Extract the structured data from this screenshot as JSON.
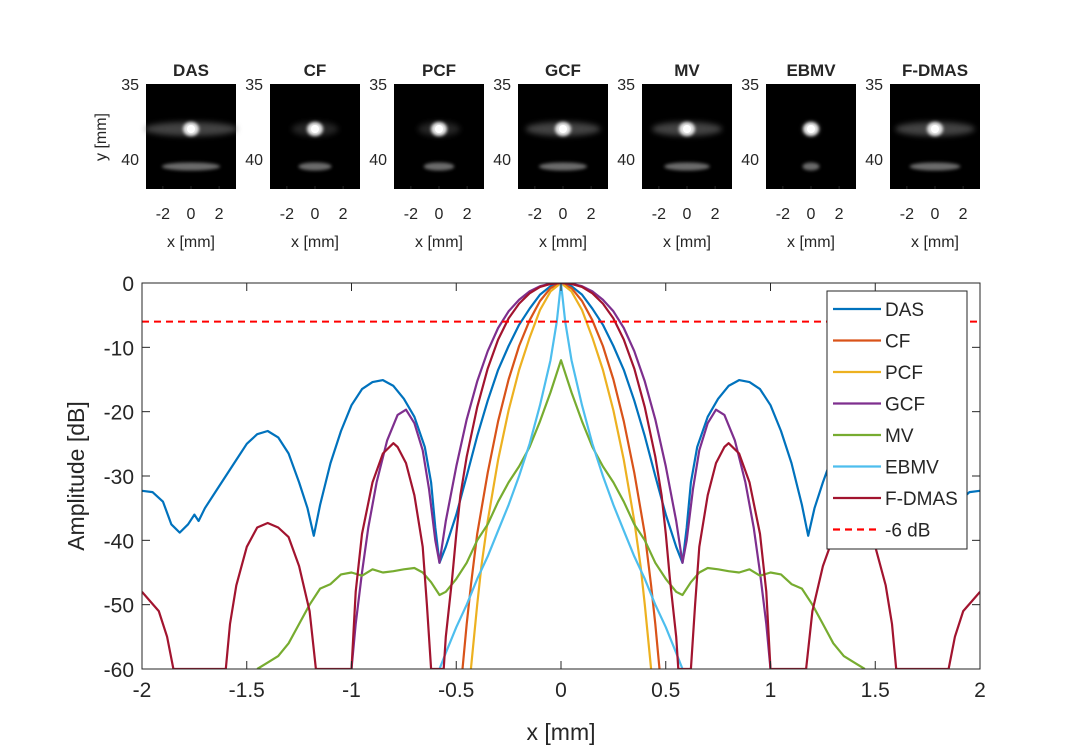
{
  "chart_data": [
    {
      "type": "image-grid",
      "panels": [
        {
          "title": "DAS"
        },
        {
          "title": "CF"
        },
        {
          "title": "PCF"
        },
        {
          "title": "GCF"
        },
        {
          "title": "MV"
        },
        {
          "title": "EBMV"
        },
        {
          "title": "F-DMAS"
        }
      ],
      "xlabel": "x [mm]",
      "ylabel": "y [mm]",
      "xlim": [
        -3.2,
        3.2
      ],
      "ylim": [
        35,
        42
      ],
      "y_reversed": true,
      "xticks": [
        -2,
        0,
        2
      ],
      "yticks": [
        35,
        40
      ],
      "colormap": "gray",
      "point_target_mm": {
        "x": 0,
        "y": 38
      },
      "secondary_spot_mm": {
        "x": 0,
        "y": 40.5
      }
    },
    {
      "type": "line",
      "title": "",
      "xlabel": "x [mm]",
      "ylabel": "Amplitude [dB]",
      "xlim": [
        -2,
        2
      ],
      "ylim": [
        -60,
        0
      ],
      "xticks": [
        -2,
        -1.5,
        -1,
        -0.5,
        0,
        0.5,
        1,
        1.5,
        2
      ],
      "yticks": [
        0,
        -10,
        -20,
        -30,
        -40,
        -50,
        -60
      ],
      "grid": false,
      "legend": "top-right",
      "series": [
        {
          "name": "DAS",
          "color": "#0072BD",
          "points": [
            [
              0,
              0
            ],
            [
              0.05,
              -0.5
            ],
            [
              0.1,
              -1.8
            ],
            [
              0.15,
              -4
            ],
            [
              0.2,
              -6.5
            ],
            [
              0.25,
              -9.8
            ],
            [
              0.3,
              -13.5
            ],
            [
              0.35,
              -18.3
            ],
            [
              0.4,
              -23.8
            ],
            [
              0.45,
              -30
            ],
            [
              0.5,
              -36
            ],
            [
              0.55,
              -41
            ],
            [
              0.58,
              -43.5
            ],
            [
              0.6,
              -38
            ],
            [
              0.62,
              -31
            ],
            [
              0.65,
              -25.5
            ],
            [
              0.7,
              -20.8
            ],
            [
              0.75,
              -18
            ],
            [
              0.8,
              -16
            ],
            [
              0.85,
              -15.1
            ],
            [
              0.9,
              -15.4
            ],
            [
              0.95,
              -16.5
            ],
            [
              1.0,
              -19
            ],
            [
              1.05,
              -23
            ],
            [
              1.1,
              -28
            ],
            [
              1.15,
              -34.5
            ],
            [
              1.18,
              -39.3
            ],
            [
              1.21,
              -35
            ],
            [
              1.25,
              -31
            ],
            [
              1.3,
              -26.5
            ],
            [
              1.35,
              -24
            ],
            [
              1.4,
              -23
            ],
            [
              1.45,
              -23.5
            ],
            [
              1.5,
              -25
            ],
            [
              1.55,
              -27.5
            ],
            [
              1.6,
              -30
            ],
            [
              1.65,
              -32.5
            ],
            [
              1.7,
              -35
            ],
            [
              1.73,
              -37
            ],
            [
              1.75,
              -36
            ],
            [
              1.78,
              -37.5
            ],
            [
              1.82,
              -38.8
            ],
            [
              1.86,
              -37.5
            ],
            [
              1.9,
              -34
            ],
            [
              1.95,
              -32.5
            ],
            [
              2.0,
              -32.3
            ]
          ]
        },
        {
          "name": "CF",
          "color": "#D95319",
          "points": [
            [
              0,
              0
            ],
            [
              0.05,
              -0.8
            ],
            [
              0.1,
              -2.8
            ],
            [
              0.15,
              -5.8
            ],
            [
              0.2,
              -9.8
            ],
            [
              0.25,
              -15
            ],
            [
              0.3,
              -21.5
            ],
            [
              0.35,
              -29.5
            ],
            [
              0.4,
              -39
            ],
            [
              0.43,
              -47
            ],
            [
              0.45,
              -53
            ],
            [
              0.47,
              -60
            ]
          ]
        },
        {
          "name": "PCF",
          "color": "#EDB120",
          "points": [
            [
              0,
              0
            ],
            [
              0.05,
              -1.3
            ],
            [
              0.1,
              -4.2
            ],
            [
              0.15,
              -8.5
            ],
            [
              0.2,
              -13.5
            ],
            [
              0.25,
              -19.8
            ],
            [
              0.3,
              -27.5
            ],
            [
              0.35,
              -37
            ],
            [
              0.38,
              -44
            ],
            [
              0.4,
              -50
            ],
            [
              0.43,
              -60
            ]
          ]
        },
        {
          "name": "GCF",
          "color": "#7E2F8E",
          "points": [
            [
              0,
              0
            ],
            [
              0.05,
              -0.1
            ],
            [
              0.1,
              -0.5
            ],
            [
              0.15,
              -1.3
            ],
            [
              0.2,
              -2.6
            ],
            [
              0.25,
              -4.4
            ],
            [
              0.3,
              -7
            ],
            [
              0.35,
              -10.6
            ],
            [
              0.4,
              -15.3
            ],
            [
              0.45,
              -21.2
            ],
            [
              0.5,
              -28.5
            ],
            [
              0.55,
              -37
            ],
            [
              0.58,
              -43.5
            ],
            [
              0.6,
              -40
            ],
            [
              0.63,
              -32
            ],
            [
              0.66,
              -26
            ],
            [
              0.7,
              -21.8
            ],
            [
              0.74,
              -19.7
            ],
            [
              0.78,
              -20.5
            ],
            [
              0.83,
              -24.5
            ],
            [
              0.88,
              -31
            ],
            [
              0.92,
              -38
            ],
            [
              0.95,
              -45
            ],
            [
              0.98,
              -53
            ],
            [
              1.0,
              -60
            ]
          ]
        },
        {
          "name": "MV",
          "color": "#77AC30",
          "points": [
            [
              0,
              -12
            ],
            [
              0.05,
              -17
            ],
            [
              0.1,
              -21.5
            ],
            [
              0.15,
              -25.5
            ],
            [
              0.2,
              -28.5
            ],
            [
              0.25,
              -31
            ],
            [
              0.3,
              -34
            ],
            [
              0.35,
              -37.5
            ],
            [
              0.4,
              -40
            ],
            [
              0.45,
              -43.5
            ],
            [
              0.5,
              -46
            ],
            [
              0.55,
              -48
            ],
            [
              0.58,
              -48.5
            ],
            [
              0.62,
              -46.5
            ],
            [
              0.66,
              -45
            ],
            [
              0.7,
              -44.3
            ],
            [
              0.75,
              -44.5
            ],
            [
              0.8,
              -44.8
            ],
            [
              0.85,
              -45
            ],
            [
              0.9,
              -44.5
            ],
            [
              0.95,
              -45.5
            ],
            [
              1.0,
              -45
            ],
            [
              1.05,
              -45.3
            ],
            [
              1.1,
              -46.8
            ],
            [
              1.15,
              -47.5
            ],
            [
              1.2,
              -50
            ],
            [
              1.25,
              -53
            ],
            [
              1.3,
              -56
            ],
            [
              1.35,
              -58
            ],
            [
              1.4,
              -59
            ],
            [
              1.45,
              -60
            ]
          ]
        },
        {
          "name": "EBMV",
          "color": "#4DBEEE",
          "points": [
            [
              0,
              0
            ],
            [
              0.02,
              -6
            ],
            [
              0.05,
              -12
            ],
            [
              0.1,
              -19
            ],
            [
              0.15,
              -25
            ],
            [
              0.2,
              -30
            ],
            [
              0.25,
              -34.5
            ],
            [
              0.3,
              -38.5
            ],
            [
              0.35,
              -42.5
            ],
            [
              0.4,
              -46
            ],
            [
              0.45,
              -50
            ],
            [
              0.5,
              -53.5
            ],
            [
              0.55,
              -57.5
            ],
            [
              0.58,
              -60
            ]
          ]
        },
        {
          "name": "F-DMAS",
          "color": "#A2142F",
          "points": [
            [
              0,
              0
            ],
            [
              0.05,
              -0.15
            ],
            [
              0.1,
              -0.6
            ],
            [
              0.15,
              -1.6
            ],
            [
              0.2,
              -3.2
            ],
            [
              0.25,
              -5.5
            ],
            [
              0.3,
              -8.8
            ],
            [
              0.35,
              -13.3
            ],
            [
              0.4,
              -19.3
            ],
            [
              0.45,
              -27
            ],
            [
              0.48,
              -33
            ],
            [
              0.5,
              -39
            ],
            [
              0.52,
              -46
            ],
            [
              0.55,
              -55
            ],
            [
              0.56,
              -60
            ],
            [
              0.62,
              -60
            ],
            [
              0.64,
              -50
            ],
            [
              0.66,
              -41
            ],
            [
              0.7,
              -33
            ],
            [
              0.74,
              -28
            ],
            [
              0.78,
              -25.5
            ],
            [
              0.8,
              -24.9
            ],
            [
              0.85,
              -26.5
            ],
            [
              0.9,
              -31
            ],
            [
              0.95,
              -39
            ],
            [
              0.98,
              -48
            ],
            [
              1.0,
              -60
            ],
            [
              1.17,
              -60
            ],
            [
              1.2,
              -51
            ],
            [
              1.25,
              -44
            ],
            [
              1.3,
              -39.5
            ],
            [
              1.35,
              -38
            ],
            [
              1.4,
              -37.3
            ],
            [
              1.45,
              -38
            ],
            [
              1.5,
              -41
            ],
            [
              1.55,
              -47
            ],
            [
              1.58,
              -53
            ],
            [
              1.6,
              -60
            ],
            [
              1.85,
              -60
            ],
            [
              1.88,
              -55
            ],
            [
              1.92,
              -51
            ],
            [
              1.96,
              -49.5
            ],
            [
              2.0,
              -48
            ]
          ]
        },
        {
          "name": "-6 dB",
          "color": "#FF0000",
          "dashed": true,
          "points": [
            [
              -2,
              -6
            ],
            [
              2,
              -6
            ]
          ]
        }
      ]
    }
  ]
}
